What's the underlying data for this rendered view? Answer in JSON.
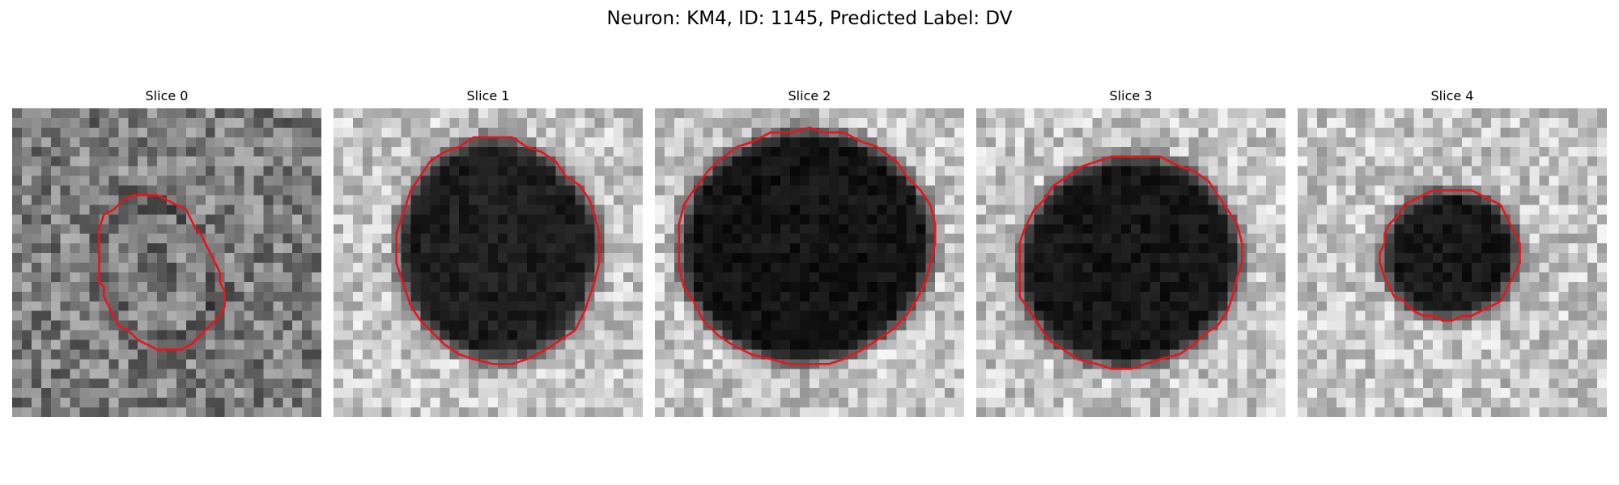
{
  "figure": {
    "title": "Neuron: KM4, ID: 1145, Predicted Label: DV"
  },
  "outline_color": "#e8141c",
  "panels": [
    {
      "title": "Slice 0",
      "darkness": 0.55,
      "seed": 11,
      "contour": [
        0.62,
        0.75,
        0.78,
        0.8,
        0.78,
        0.7,
        0.6,
        0.58,
        0.6,
        0.66,
        0.74,
        0.78,
        0.74,
        0.66,
        0.58,
        0.58
      ]
    },
    {
      "title": "Slice 1",
      "darkness": 0.92,
      "seed": 23,
      "contour": [
        0.88,
        0.87,
        0.92,
        0.95,
        0.93,
        0.88,
        0.83,
        0.8,
        0.78,
        0.8,
        0.84,
        0.88,
        0.91,
        0.88,
        0.86,
        0.88
      ]
    },
    {
      "title": "Slice 2",
      "darkness": 0.97,
      "seed": 37,
      "contour": [
        0.95,
        0.92,
        0.9,
        0.89,
        0.9,
        0.92,
        0.95,
        0.97,
        0.96,
        0.95,
        0.92,
        0.89,
        0.88,
        0.89,
        0.91,
        0.94
      ]
    },
    {
      "title": "Slice 3",
      "darkness": 0.96,
      "seed": 51,
      "contour": [
        0.92,
        0.9,
        0.87,
        0.86,
        0.87,
        0.89,
        0.91,
        0.92,
        0.9,
        0.88,
        0.86,
        0.85,
        0.86,
        0.88,
        0.9,
        0.92
      ]
    },
    {
      "title": "Slice 4",
      "darkness": 0.95,
      "seed": 67,
      "contour": [
        0.74,
        0.73,
        0.72,
        0.72,
        0.73,
        0.75,
        0.77,
        0.78,
        0.78,
        0.76,
        0.74,
        0.72,
        0.71,
        0.72,
        0.73,
        0.74
      ]
    }
  ]
}
